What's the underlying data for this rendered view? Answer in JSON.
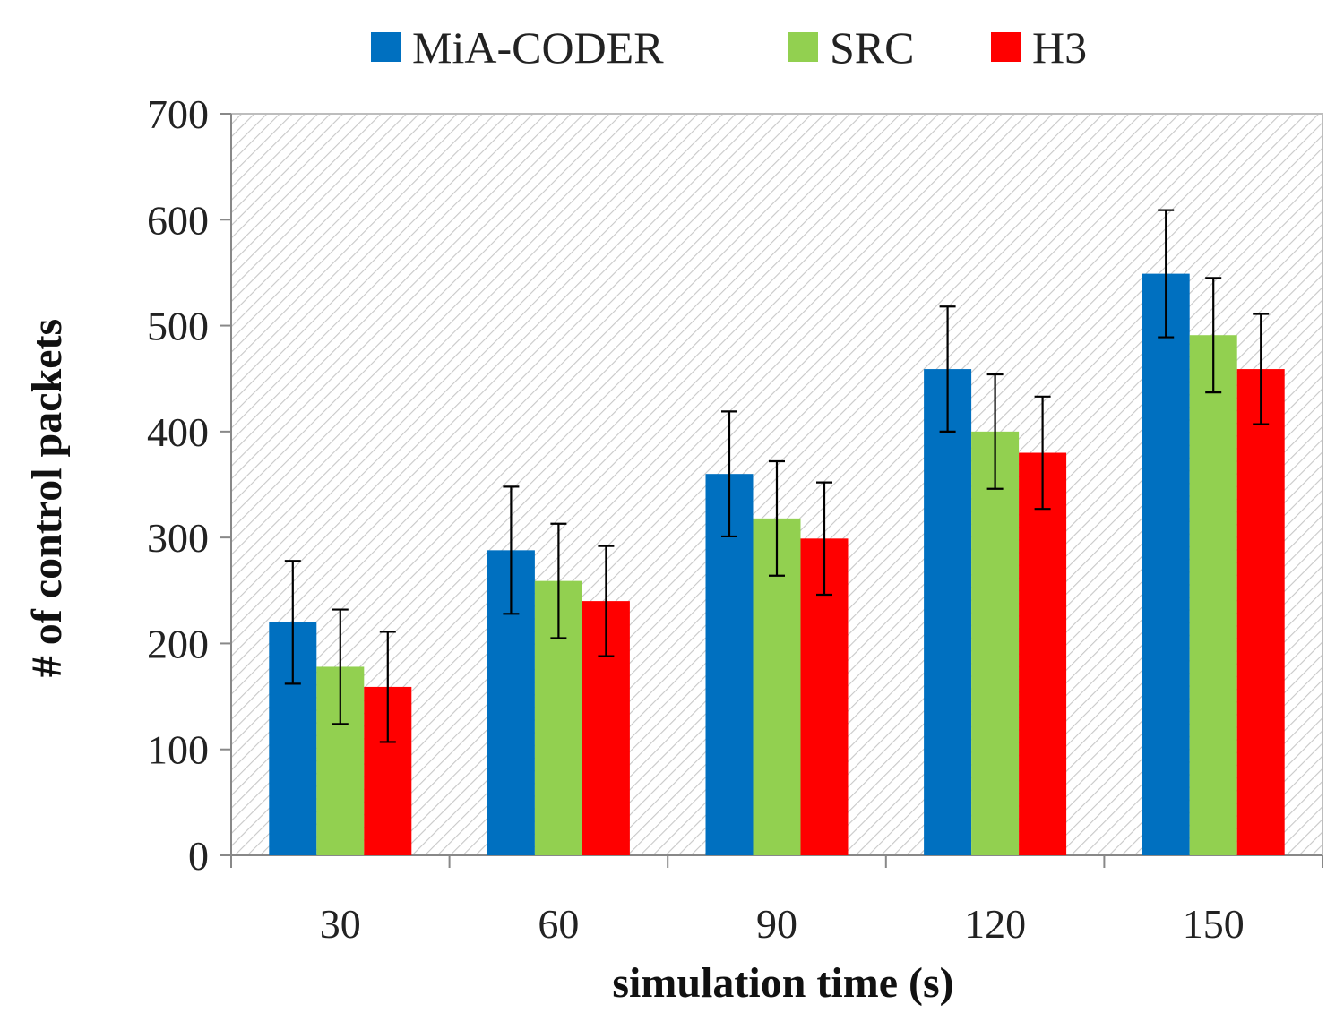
{
  "chart_data": {
    "type": "bar",
    "title": "",
    "xlabel": "simulation time (s)",
    "ylabel": "# of control packets",
    "categories": [
      "30",
      "60",
      "90",
      "120",
      "150"
    ],
    "ylim": [
      0,
      700
    ],
    "yticks": [
      0,
      100,
      200,
      300,
      400,
      500,
      600,
      700
    ],
    "grid": false,
    "legend_position": "top",
    "series": [
      {
        "name": "MiA-CODER",
        "color": "#0070C0",
        "values": [
          220,
          288,
          360,
          459,
          549
        ],
        "errors": [
          58,
          60,
          59,
          59,
          60
        ]
      },
      {
        "name": "SRC",
        "color": "#92D050",
        "values": [
          178,
          259,
          318,
          400,
          491
        ],
        "errors": [
          54,
          54,
          54,
          54,
          54
        ]
      },
      {
        "name": "H3",
        "color": "#FF0000",
        "values": [
          159,
          240,
          299,
          380,
          459
        ],
        "errors": [
          52,
          52,
          53,
          53,
          52
        ]
      }
    ]
  }
}
